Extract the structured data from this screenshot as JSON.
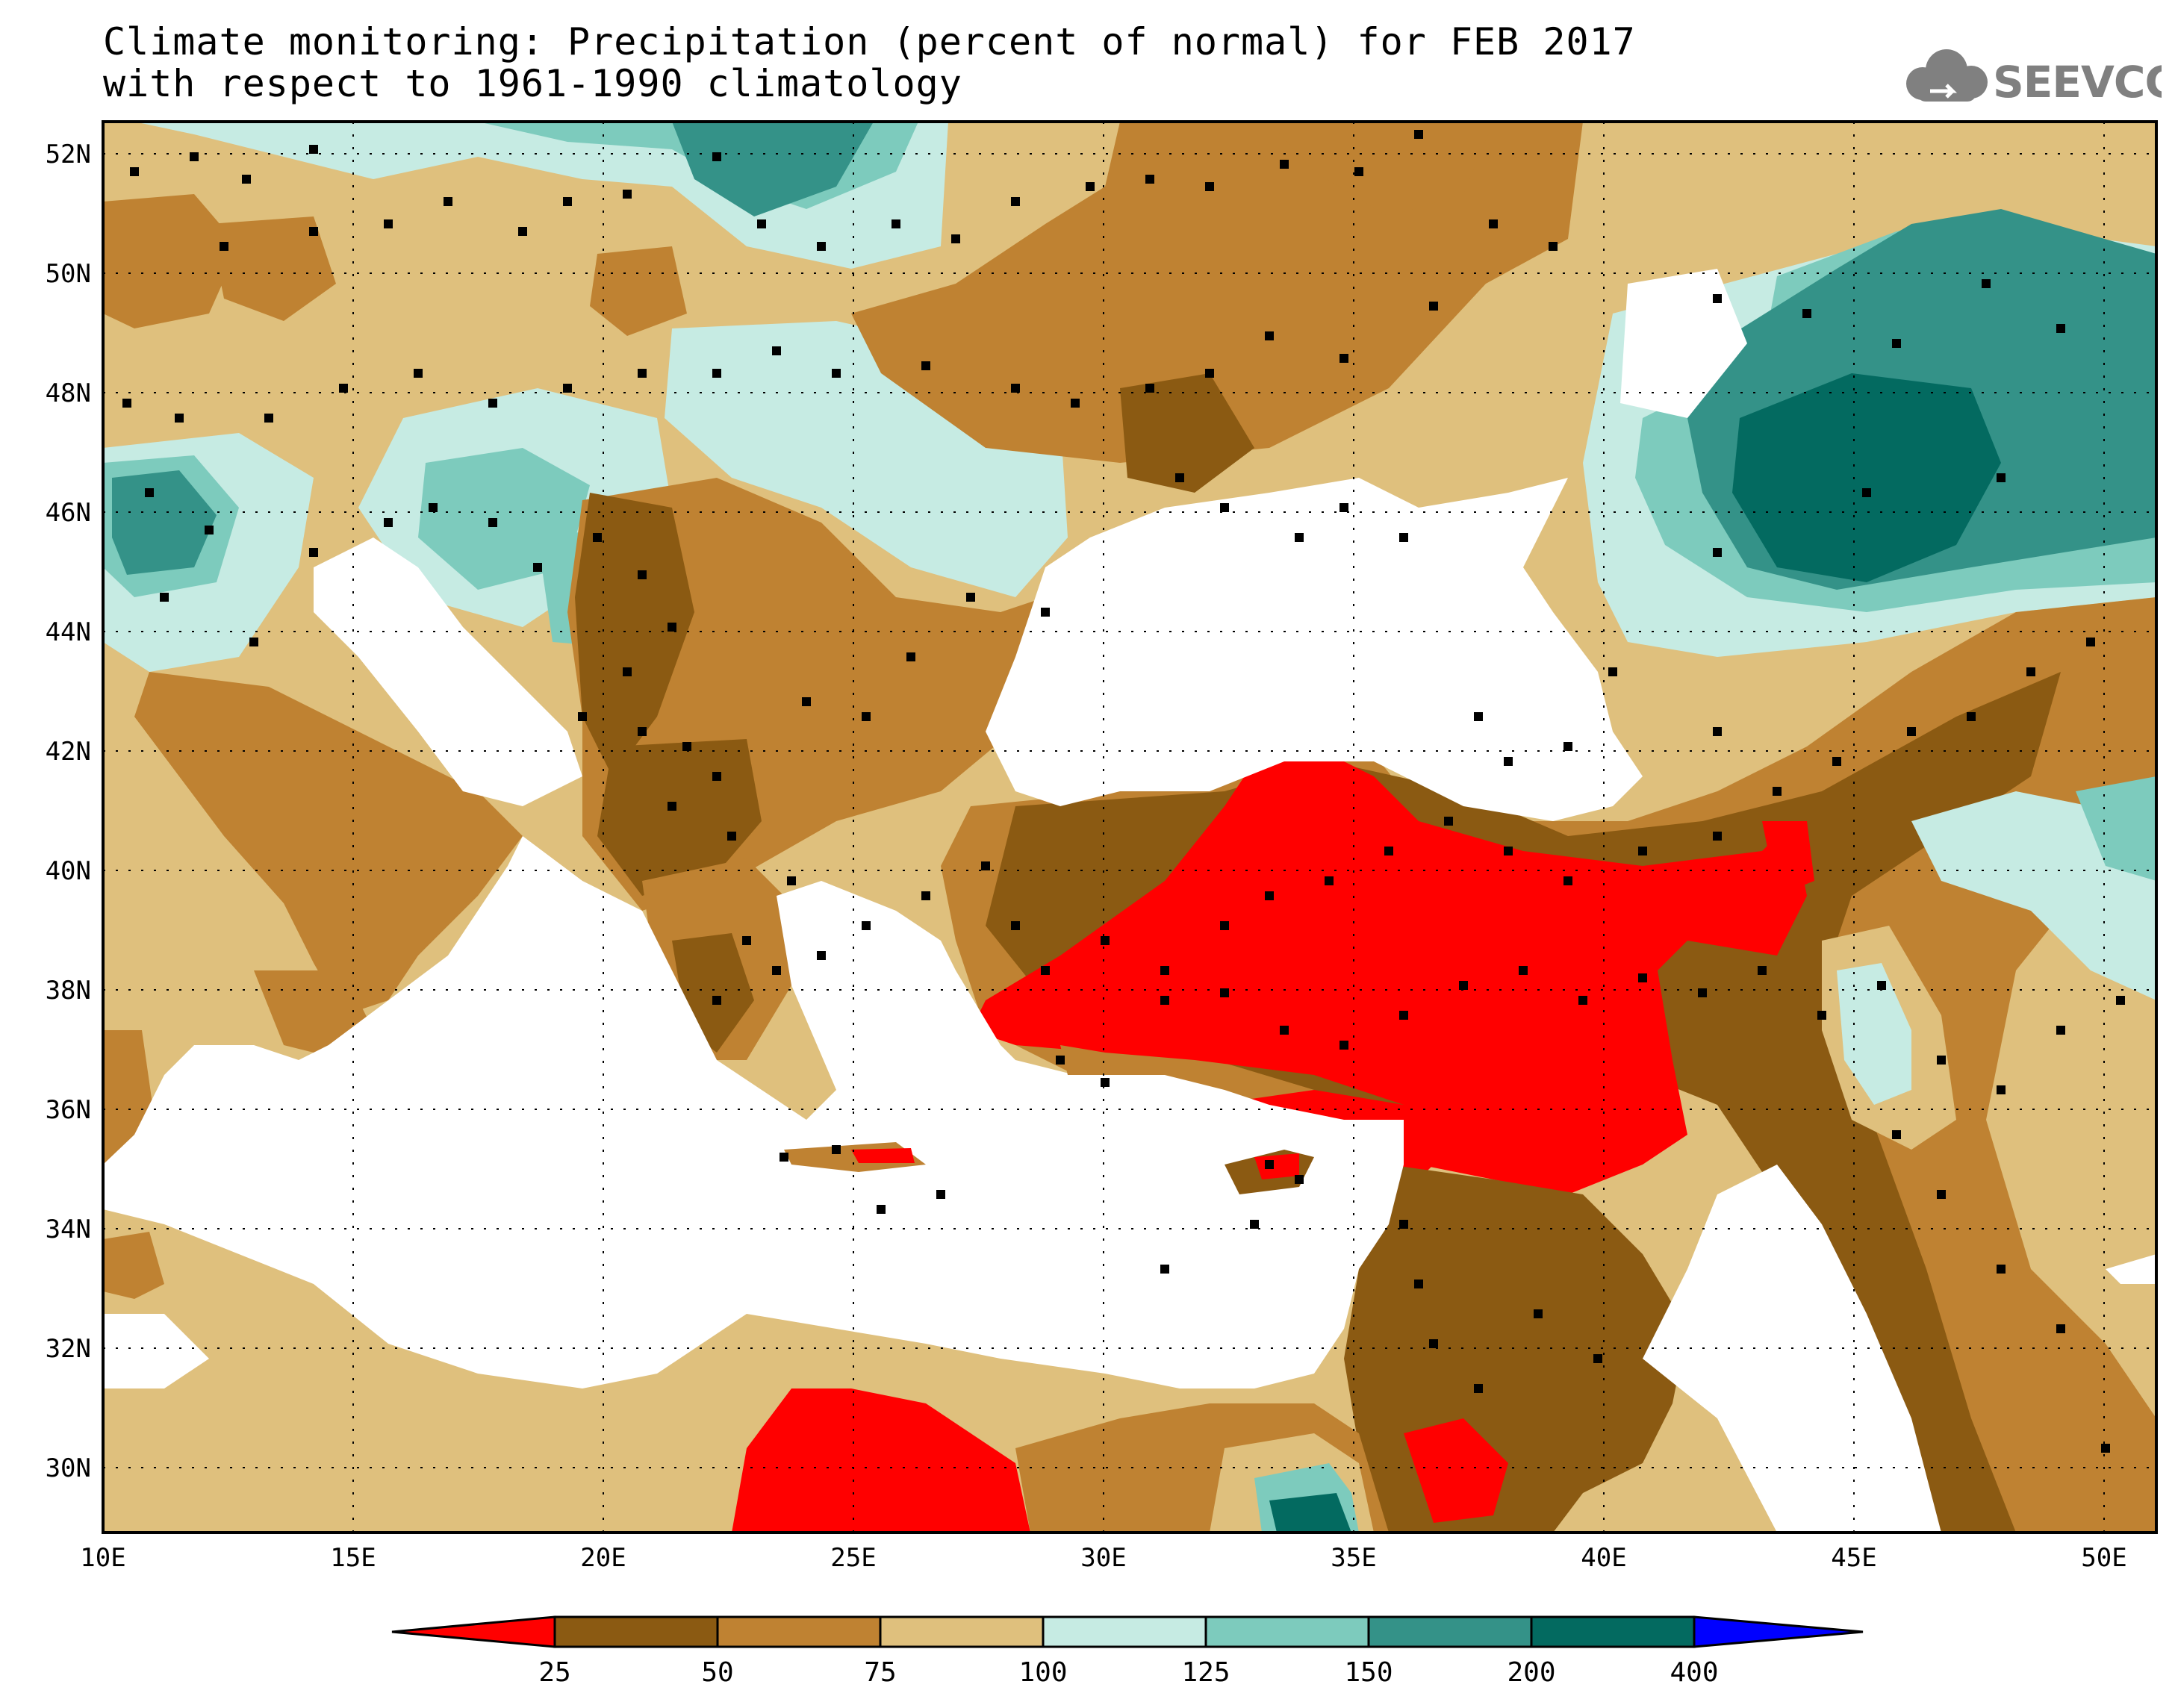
{
  "title": {
    "line1": "Climate monitoring: Precipitation (percent of normal) for FEB 2017",
    "line2": "with respect to 1961-1990 climatology"
  },
  "logo": {
    "text": "SEEVCCC",
    "icon": "cloud-icon"
  },
  "axes": {
    "lat_labels": [
      "52N",
      "50N",
      "48N",
      "46N",
      "44N",
      "42N",
      "40N",
      "38N",
      "36N",
      "34N",
      "32N",
      "30N"
    ],
    "lon_labels": [
      "10E",
      "15E",
      "20E",
      "25E",
      "30E",
      "35E",
      "40E",
      "45E",
      "50E"
    ]
  },
  "colorbar": {
    "labels": [
      "25",
      "50",
      "75",
      "100",
      "125",
      "150",
      "200",
      "400"
    ],
    "colors": [
      "#ff0000",
      "#8b5a12",
      "#bf8232",
      "#dfc07d",
      "#c6ebe3",
      "#7dcbbd",
      "#349288",
      "#036a60",
      "#0000ff"
    ]
  },
  "colors": {
    "sea": "#ffffff",
    "red": "#ff0000",
    "dark_brown": "#8b5a12",
    "brown": "#bf8232",
    "tan": "#dfc07d",
    "light_teal": "#c6ebe3",
    "teal": "#7dcbbd",
    "dark_teal": "#349288",
    "darkest_teal": "#036a60"
  }
}
